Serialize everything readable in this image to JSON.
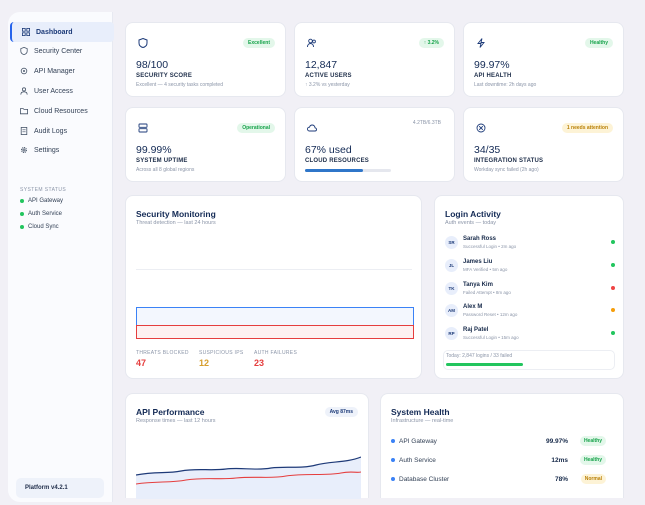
{
  "sidebar": {
    "nav": [
      {
        "label": "Dashboard",
        "icon": "grid-icon",
        "active": true
      },
      {
        "label": "Security Center",
        "icon": "shield-icon",
        "active": false
      },
      {
        "label": "API Manager",
        "icon": "gear-icon",
        "active": false
      },
      {
        "label": "User Access",
        "icon": "user-icon",
        "active": false
      },
      {
        "label": "Cloud Resources",
        "icon": "folder-icon",
        "active": false
      },
      {
        "label": "Audit Logs",
        "icon": "document-icon",
        "active": false
      },
      {
        "label": "Settings",
        "icon": "settings-icon",
        "active": false
      }
    ],
    "system_status_title": "SYSTEM STATUS",
    "system_status": [
      "API Gateway",
      "Auth Service",
      "Cloud Sync"
    ],
    "version": "Platform v4.2.1"
  },
  "stats": [
    {
      "icon": "shield-icon",
      "badge": "Excellent",
      "badge_color": "green",
      "value": "98/100",
      "label": "SECURITY SCORE",
      "sub": "Excellent — 4 security tasks completed"
    },
    {
      "icon": "users-icon",
      "badge": "↑ 3.2%",
      "badge_color": "green",
      "value": "12,847",
      "label": "ACTIVE USERS",
      "sub": "↑ 3.2% vs yesterday"
    },
    {
      "icon": "bolt-icon",
      "badge": "Healthy",
      "badge_color": "green",
      "value": "99.97%",
      "label": "API HEALTH",
      "sub": "Last downtime: 2h days ago"
    },
    {
      "icon": "server-icon",
      "badge": "Operational",
      "badge_color": "green",
      "value": "99.99%",
      "label": "SYSTEM UPTIME",
      "sub": "Across all 8 global regions"
    },
    {
      "icon": "cloud-icon",
      "badge": "4.2TB/6.3TB",
      "badge_color": "none",
      "value": "67% used",
      "label": "CLOUD RESOURCES",
      "sub": "",
      "progress": 0.67
    },
    {
      "icon": "block-icon",
      "badge": "1 needs attention",
      "badge_color": "yellow",
      "value": "34/35",
      "label": "INTEGRATION STATUS",
      "sub": "Workday sync failed (2h ago)"
    }
  ],
  "security": {
    "title": "Security Monitoring",
    "sub": "Threat detection — last 24 hours",
    "metrics": [
      {
        "label": "THREATS BLOCKED",
        "value": "47",
        "color": "#e53e3e"
      },
      {
        "label": "SUSPICIOUS IPS",
        "value": "12",
        "color": "#d69e2e"
      },
      {
        "label": "AUTH FAILURES",
        "value": "23",
        "color": "#e53e3e"
      }
    ]
  },
  "login": {
    "title": "Login Activity",
    "sub": "Auth events — today",
    "rows": [
      {
        "initials": "SR",
        "name": "Sarah Ross",
        "detail": "Successful Login • 2m ago",
        "status": "#22c55e"
      },
      {
        "initials": "JL",
        "name": "James Liu",
        "detail": "MFA Verified • 5m ago",
        "status": "#22c55e"
      },
      {
        "initials": "TK",
        "name": "Tanya Kim",
        "detail": "Failed Attempt • 8m ago",
        "status": "#ef4444"
      },
      {
        "initials": "AM",
        "name": "Alex M",
        "detail": "Password Reset • 12m ago",
        "status": "#f59e0b"
      },
      {
        "initials": "RP",
        "name": "Raj Patel",
        "detail": "Successful Login • 15m ago",
        "status": "#22c55e"
      }
    ],
    "summary": "Today: 2,847 logins / 33 failed",
    "summary_progress": 0.55
  },
  "api": {
    "title": "API Performance",
    "sub": "Response times — last 12 hours",
    "badge": "Avg 87ms"
  },
  "health": {
    "title": "System Health",
    "sub": "Infrastructure — real-time",
    "rows": [
      {
        "name": "API Gateway",
        "value": "99.97%",
        "badge": "Healthy",
        "badge_color": "green",
        "dot": "#3b82f6"
      },
      {
        "name": "Auth Service",
        "value": "12ms",
        "badge": "Healthy",
        "badge_color": "green",
        "dot": "#3b82f6"
      },
      {
        "name": "Database Cluster",
        "value": "78%",
        "badge": "Normal",
        "badge_color": "yellow",
        "dot": "#3b82f6"
      }
    ]
  }
}
